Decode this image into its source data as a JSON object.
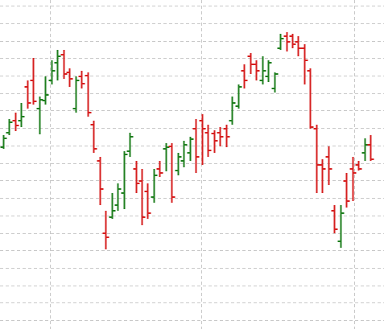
{
  "chart_data": {
    "type": "ohlc",
    "up_color": "#1f7f1f",
    "down_color": "#d61f1f",
    "grid": true,
    "xlim": [
      -0.53,
      63.24
    ],
    "xticks": [
      7.75,
      32.9,
      58.3
    ],
    "ylim": [
      0,
      409
    ],
    "yticks": [
      11,
      33,
      54,
      76,
      98,
      119,
      141,
      163,
      185,
      206,
      228,
      250,
      272,
      293,
      315,
      337,
      358,
      380,
      402
    ],
    "open": [
      226,
      244,
      259,
      259,
      301,
      309,
      274,
      284,
      309,
      331,
      341,
      319,
      274,
      314,
      315,
      254,
      209,
      119,
      139,
      154,
      169,
      221,
      199,
      184,
      171,
      164,
      199,
      224,
      227,
      197,
      209,
      219,
      249,
      259,
      244,
      243,
      244,
      249,
      259,
      277,
      321,
      339,
      329,
      309,
      314,
      299,
      349,
      364,
      364,
      357,
      349,
      321,
      249,
      204,
      214,
      147,
      109,
      184,
      199,
      204,
      219,
      229
    ],
    "high": [
      241,
      261,
      269,
      281,
      309,
      337,
      289,
      314,
      334,
      347,
      347,
      324,
      314,
      321,
      319,
      259,
      214,
      147,
      169,
      181,
      221,
      244,
      209,
      199,
      181,
      199,
      209,
      231,
      231,
      219,
      234,
      239,
      261,
      267,
      254,
      247,
      251,
      254,
      289,
      304,
      329,
      343,
      334,
      339,
      334,
      319,
      367,
      369,
      367,
      364,
      354,
      324,
      254,
      211,
      227,
      154,
      154,
      194,
      214,
      209,
      237,
      241
    ],
    "low": [
      224,
      241,
      246,
      251,
      274,
      279,
      242,
      279,
      304,
      309,
      311,
      301,
      269,
      299,
      264,
      219,
      154,
      99,
      137,
      147,
      149,
      214,
      169,
      129,
      137,
      157,
      189,
      196,
      157,
      191,
      201,
      209,
      194,
      204,
      214,
      219,
      227,
      226,
      254,
      274,
      299,
      317,
      309,
      304,
      307,
      294,
      347,
      345,
      349,
      339,
      304,
      249,
      169,
      169,
      179,
      119,
      101,
      151,
      159,
      197,
      209,
      209
    ],
    "close": [
      237,
      257,
      253,
      264,
      281,
      283,
      285,
      291,
      321,
      339,
      317,
      311,
      309,
      305,
      269,
      224,
      174,
      114,
      147,
      174,
      217,
      239,
      181,
      139,
      144,
      191,
      194,
      226,
      164,
      214,
      229,
      236,
      214,
      249,
      222,
      234,
      239,
      239,
      281,
      301,
      309,
      329,
      321,
      321,
      331,
      317,
      361,
      357,
      354,
      349,
      334,
      251,
      204,
      199,
      199,
      124,
      144,
      159,
      194,
      199,
      229,
      211
    ]
  }
}
